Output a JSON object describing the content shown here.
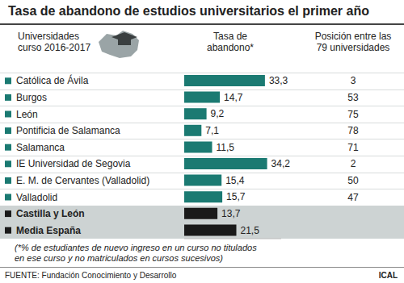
{
  "chart_data": {
    "type": "bar",
    "orientation": "horizontal",
    "title": "Tasa de abandono de estudios universitarios el primer año",
    "column_headers": [
      [
        "Universidades",
        "curso 2016-2017"
      ],
      [
        "Tasa de",
        "abandono*"
      ],
      [
        "Posición entre las",
        "79 universidades"
      ]
    ],
    "categories": [
      "Católica de Ávila",
      "Burgos",
      "León",
      "Pontificia de Salamanca",
      "Salamanca",
      "IE Universidad de Segovia",
      "E. M. de Cervantes (Valladolid)",
      "Valladolid",
      "Castilla y León",
      "Media España"
    ],
    "values": [
      33.3,
      14.7,
      9.2,
      7.1,
      11.5,
      34.2,
      15.4,
      15.7,
      13.7,
      21.5
    ],
    "value_labels": [
      "33,3",
      "14,7",
      "9,2",
      "7,1",
      "11,5",
      "34,2",
      "15,4",
      "15,7",
      "13,7",
      "21,5"
    ],
    "positions": [
      3,
      53,
      75,
      78,
      71,
      2,
      50,
      47,
      null,
      null
    ],
    "colors": [
      "#1b7a72",
      "#1b7a72",
      "#1b7a72",
      "#1b7a72",
      "#1b7a72",
      "#1b7a72",
      "#1b7a72",
      "#1b7a72",
      "#1a1a1a",
      "#1a1a1a"
    ],
    "xlim": [
      0,
      40
    ],
    "tick_labels": false,
    "data_labels": true,
    "note": [
      "(*% de estudiantes de nuevo ingreso en un curso no titulados",
      "en ese curso y no matriculados en cursos sucesivos)"
    ],
    "source": "FUENTE: Fundación Conocimiento y Desarrollo",
    "credit": "ICAL"
  }
}
